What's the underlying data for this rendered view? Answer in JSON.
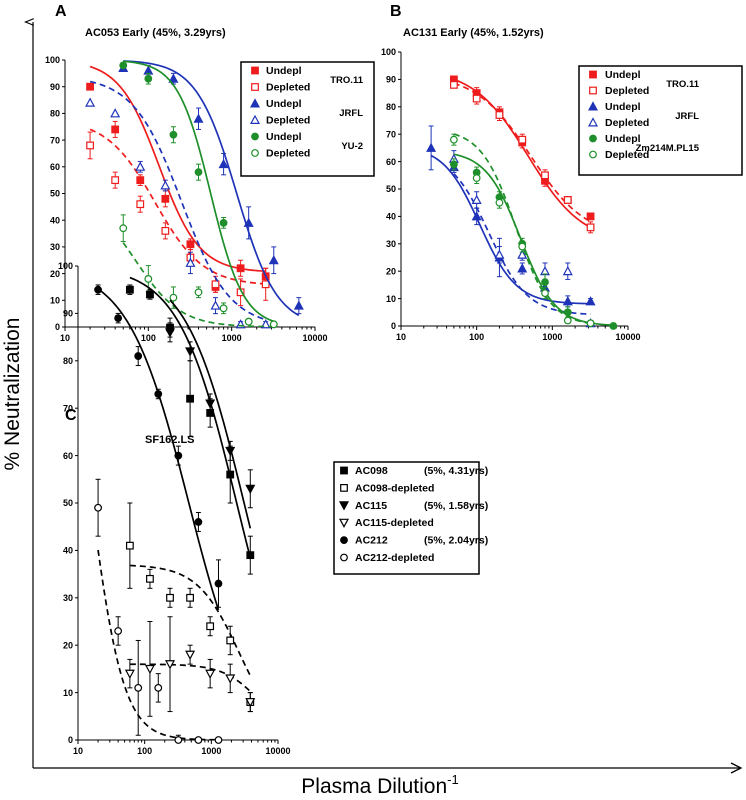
{
  "figure": {
    "ylabel": "% Neutralization",
    "xlabel": "Plasma Dilution",
    "xlabel_sup": "-1"
  },
  "chart_data": [
    {
      "panel": "A",
      "type": "scatter",
      "title": "AC053 Early (45%, 3.29yrs)",
      "x_scale": "log",
      "xlim": [
        10,
        10000
      ],
      "ylim": [
        0,
        100
      ],
      "x_ticks": [
        "10",
        "100",
        "1000",
        "10000"
      ],
      "y_ticks": [
        "0",
        "10",
        "20",
        "30",
        "40",
        "50",
        "60",
        "70",
        "80",
        "90",
        "100"
      ],
      "legend_groups": [
        {
          "label": "TRO.11",
          "color": "#ee1c1c"
        },
        {
          "label": "JRFL",
          "color": "#1f33b8"
        },
        {
          "label": "YU-2",
          "color": "#1e8f2a"
        }
      ],
      "series": [
        {
          "name": "Undepl",
          "group": "TRO.11",
          "color": "#ee1c1c",
          "marker": "square",
          "filled": true,
          "line": "solid",
          "x": [
            20,
            40,
            80,
            160,
            320,
            640,
            1280,
            2560
          ],
          "y": [
            90,
            74,
            55,
            48,
            31,
            15,
            22,
            19
          ],
          "err": [
            0,
            3,
            2,
            3,
            2,
            2,
            3,
            3
          ],
          "fit": {
            "bottom": 20.5,
            "top": 100,
            "ec50": 135,
            "hill": 1.8
          }
        },
        {
          "name": "Depleted",
          "group": "TRO.11",
          "color": "#ee1c1c",
          "marker": "square",
          "filled": false,
          "line": "dash",
          "x": [
            20,
            40,
            80,
            160,
            320,
            640,
            1280,
            2560
          ],
          "y": [
            68,
            55,
            46,
            36,
            26,
            16,
            13,
            16
          ],
          "err": [
            5,
            3,
            3,
            3,
            3,
            3,
            5,
            6
          ],
          "fit": {
            "bottom": 15.5,
            "top": 78,
            "ec50": 120,
            "hill": 1.5
          }
        },
        {
          "name": "Undepl",
          "group": "JRFL",
          "color": "#1f33b8",
          "marker": "triangle",
          "filled": true,
          "line": "solid",
          "x": [
            50,
            100,
            200,
            400,
            800,
            1600,
            3200,
            6400
          ],
          "y": [
            97,
            96,
            93,
            78,
            61,
            39,
            25,
            8
          ],
          "err": [
            1,
            2,
            2,
            4,
            4,
            6,
            5,
            3
          ],
          "fit": {
            "bottom": 0,
            "top": 100,
            "ec50": 1150,
            "hill": 1.8
          }
        },
        {
          "name": "Depleted",
          "group": "JRFL",
          "color": "#1f33b8",
          "marker": "triangle",
          "filled": false,
          "line": "dash",
          "x": [
            20,
            40,
            80,
            160,
            320,
            640,
            1280,
            2560
          ],
          "y": [
            84,
            80,
            60,
            53,
            24,
            8,
            1,
            1
          ],
          "err": [
            0,
            0,
            2,
            2,
            4,
            3,
            1,
            1
          ],
          "fit": {
            "bottom": 0,
            "top": 94,
            "ec50": 250,
            "hill": 1.5
          }
        },
        {
          "name": "Undepl",
          "group": "YU-2",
          "color": "#1e8f2a",
          "marker": "circle",
          "filled": true,
          "line": "solid",
          "x": [
            50,
            100,
            200,
            400,
            800,
            1600,
            3200
          ],
          "y": [
            98,
            93,
            72,
            58,
            39,
            2,
            1
          ],
          "err": [
            1,
            2,
            3,
            3,
            2,
            1,
            1
          ],
          "fit": {
            "bottom": 0,
            "top": 100,
            "ec50": 560,
            "hill": 2.2
          }
        },
        {
          "name": "Depleted",
          "group": "YU-2",
          "color": "#1e8f2a",
          "marker": "circle",
          "filled": false,
          "line": "dash",
          "x": [
            50,
            100,
            200,
            400,
            800,
            1600,
            3200
          ],
          "y": [
            37,
            18,
            11,
            13,
            7,
            2,
            1
          ],
          "err": [
            5,
            5,
            4,
            2,
            2,
            1,
            1
          ],
          "fit": {
            "bottom": 0,
            "top": 50,
            "ec50": 70,
            "hill": 1.6
          }
        }
      ]
    },
    {
      "panel": "B",
      "type": "scatter",
      "title": "AC131 Early (45%, 1.52yrs)",
      "x_scale": "log",
      "xlim": [
        10,
        10000
      ],
      "ylim": [
        0,
        100
      ],
      "x_ticks": [
        "10",
        "100",
        "1000",
        "10000"
      ],
      "y_ticks": [
        "0",
        "10",
        "20",
        "30",
        "40",
        "50",
        "60",
        "70",
        "80",
        "90",
        "100"
      ],
      "legend_groups": [
        {
          "label": "TRO.11",
          "color": "#ee1c1c"
        },
        {
          "label": "JRFL",
          "color": "#1f33b8"
        },
        {
          "label": "Zm214M.PL15",
          "color": "#1e8f2a"
        }
      ],
      "series": [
        {
          "name": "Undepl",
          "group": "TRO.11",
          "color": "#ee1c1c",
          "marker": "square",
          "filled": true,
          "line": "solid",
          "x": [
            50,
            100,
            200,
            400,
            800,
            1600,
            3200
          ],
          "y": [
            90,
            85,
            78,
            67,
            53,
            46,
            40
          ],
          "err": [
            1,
            2,
            2,
            2,
            2,
            1,
            1
          ],
          "fit": {
            "bottom": 30,
            "top": 94,
            "ec50": 480,
            "hill": 1.2
          }
        },
        {
          "name": "Depleted",
          "group": "TRO.11",
          "color": "#ee1c1c",
          "marker": "square",
          "filled": false,
          "line": "dash",
          "x": [
            50,
            100,
            200,
            400,
            800,
            1600,
            3200
          ],
          "y": [
            88,
            83,
            77,
            68,
            55,
            46,
            36
          ],
          "err": [
            1,
            2,
            2,
            2,
            2,
            1,
            2
          ],
          "fit": {
            "bottom": 32,
            "top": 92,
            "ec50": 520,
            "hill": 1.2
          }
        },
        {
          "name": "Undepl",
          "group": "JRFL",
          "color": "#1f33b8",
          "marker": "triangle",
          "filled": true,
          "line": "solid",
          "x": [
            25,
            50,
            100,
            200,
            400,
            800,
            1600,
            3200
          ],
          "y": [
            65,
            58,
            40,
            25,
            21,
            14,
            9,
            9
          ],
          "err": [
            8,
            2,
            3,
            7,
            2,
            3,
            2,
            1
          ],
          "fit": {
            "bottom": 8,
            "top": 66,
            "ec50": 110,
            "hill": 1.8
          }
        },
        {
          "name": "Depleted",
          "group": "JRFL",
          "color": "#1f33b8",
          "marker": "triangle",
          "filled": false,
          "line": "dash",
          "x": [
            50,
            100,
            200,
            400,
            800,
            1600,
            3200
          ],
          "y": [
            61,
            46,
            26,
            26,
            20,
            20,
            1
          ],
          "err": [
            3,
            3,
            3,
            2,
            3,
            3,
            1
          ],
          "fit": {
            "bottom": 4,
            "top": 64,
            "ec50": 145,
            "hill": 1.7
          }
        },
        {
          "name": "Undepl",
          "group": "Zm214M.PL15",
          "color": "#1e8f2a",
          "marker": "circle",
          "filled": true,
          "line": "solid",
          "x": [
            50,
            100,
            200,
            400,
            800,
            1600,
            3200,
            6400
          ],
          "y": [
            59,
            56,
            47,
            30,
            16,
            5,
            1,
            0
          ],
          "err": [
            2,
            2,
            2,
            2,
            3,
            2,
            1,
            1
          ],
          "fit": {
            "bottom": 0,
            "top": 64,
            "ec50": 380,
            "hill": 1.9
          }
        },
        {
          "name": "Depleted",
          "group": "Zm214M.PL15",
          "color": "#1e8f2a",
          "marker": "circle",
          "filled": false,
          "line": "dash",
          "x": [
            50,
            100,
            200,
            400,
            800,
            1600,
            3200
          ],
          "y": [
            68,
            54,
            45,
            29,
            12,
            2,
            1
          ],
          "err": [
            2,
            2,
            2,
            2,
            2,
            1,
            1
          ],
          "fit": {
            "bottom": 0,
            "top": 72,
            "ec50": 330,
            "hill": 1.9
          }
        }
      ]
    },
    {
      "panel": "C",
      "type": "scatter",
      "title": "SF162.LS",
      "x_scale": "log",
      "xlim": [
        10,
        10000
      ],
      "ylim": [
        0,
        100
      ],
      "x_ticks": [
        "10",
        "100",
        "1000",
        "10000"
      ],
      "y_ticks": [
        "0",
        "10",
        "20",
        "30",
        "40",
        "50",
        "60",
        "70",
        "80",
        "90",
        "100"
      ],
      "series": [
        {
          "name": "AC098",
          "info": "(5%, 4.31yrs)",
          "color": "#000000",
          "marker": "square",
          "filled": true,
          "line": "solid",
          "x": [
            60,
            120,
            240,
            480,
            960,
            1920,
            3840
          ],
          "y": [
            95,
            94,
            87,
            72,
            69,
            56,
            39
          ],
          "err": [
            1,
            1,
            2,
            8,
            3,
            6,
            4
          ],
          "fit": {
            "bottom": 0,
            "top": 100,
            "ec50": 2400,
            "hill": 1.0
          }
        },
        {
          "name": "AC098-depleted",
          "color": "#000000",
          "marker": "square",
          "filled": false,
          "line": "dash",
          "x": [
            60,
            120,
            240,
            480,
            960,
            1920,
            3840
          ],
          "y": [
            41,
            34,
            30,
            30,
            24,
            21,
            8
          ],
          "err": [
            9,
            2,
            2,
            2,
            2,
            3,
            2
          ],
          "fit": {
            "bottom": 0,
            "top": 37,
            "ec50": 2600,
            "hill": 1.4
          }
        },
        {
          "name": "AC115",
          "info": "(5%, 1.58yrs)",
          "color": "#000000",
          "marker": "triangle-down",
          "filled": true,
          "line": "solid",
          "x": [
            240,
            480,
            960,
            1920,
            3840
          ],
          "y": [
            86,
            82,
            71,
            61,
            53
          ],
          "err": [
            2,
            2,
            2,
            2,
            4
          ],
          "fit": {
            "bottom": 0,
            "top": 100,
            "ec50": 3100,
            "hill": 1.0
          }
        },
        {
          "name": "AC115-depleted",
          "color": "#000000",
          "marker": "triangle-down",
          "filled": false,
          "line": "dash",
          "x": [
            60,
            120,
            240,
            480,
            960,
            1920,
            3840
          ],
          "y": [
            14,
            15,
            16,
            18,
            14,
            13,
            8
          ],
          "err": [
            3,
            10,
            10,
            2,
            3,
            3,
            2
          ],
          "fit": {
            "bottom": 0,
            "top": 16,
            "ec50": 5500,
            "hill": 1.6
          }
        },
        {
          "name": "AC212",
          "info": "(5%, 2.04yrs)",
          "color": "#000000",
          "marker": "circle",
          "filled": true,
          "line": "solid",
          "x": [
            20,
            40,
            80,
            160,
            320,
            640,
            1280
          ],
          "y": [
            95,
            89,
            81,
            73,
            60,
            46,
            33
          ],
          "err": [
            1,
            1,
            2,
            1,
            2,
            2,
            5
          ],
          "fit": {
            "bottom": 0,
            "top": 100,
            "ec50": 460,
            "hill": 0.95
          }
        },
        {
          "name": "AC212-depleted",
          "color": "#000000",
          "marker": "circle",
          "filled": false,
          "line": "dash",
          "x": [
            20,
            40,
            80,
            160,
            320,
            640,
            1280
          ],
          "y": [
            49,
            23,
            11,
            11,
            0,
            0,
            0
          ],
          "err": [
            6,
            3,
            10,
            3,
            1,
            0,
            0
          ],
          "fit": {
            "bottom": 0,
            "top": 100,
            "ec50": 16,
            "hill": 1.8
          }
        }
      ]
    }
  ]
}
